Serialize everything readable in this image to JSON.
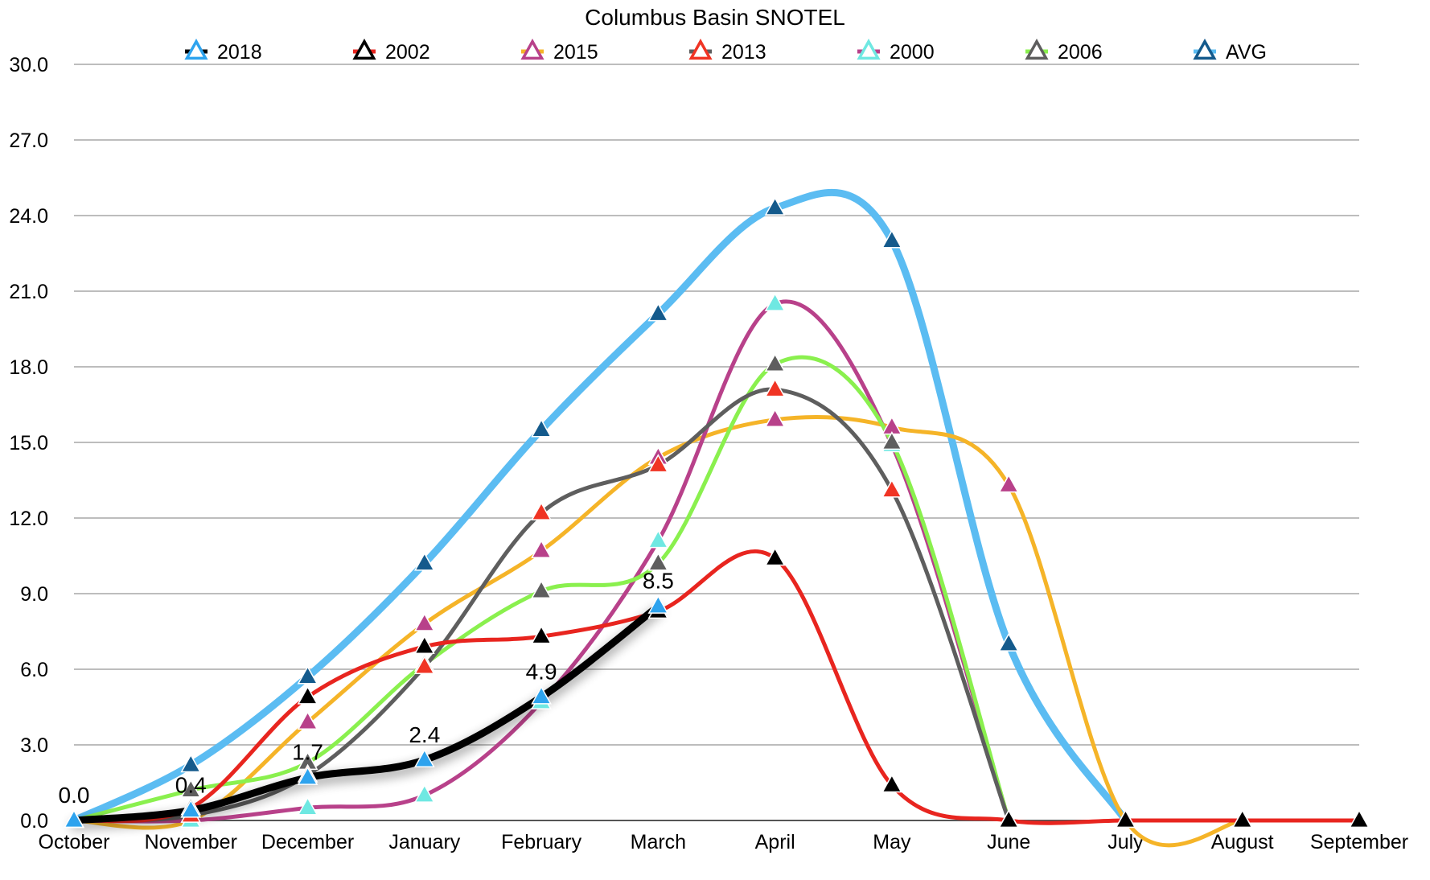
{
  "chart_data": {
    "type": "line",
    "title": "Columbus Basin SNOTEL",
    "xlabel": "",
    "ylabel": "",
    "categories": [
      "October",
      "November",
      "December",
      "January",
      "February",
      "March",
      "April",
      "May",
      "June",
      "July",
      "August",
      "September"
    ],
    "ylim": [
      0,
      30
    ],
    "yticks": [
      "0.0",
      "3.0",
      "6.0",
      "9.0",
      "12.0",
      "15.0",
      "18.0",
      "21.0",
      "24.0",
      "27.0",
      "30.0"
    ],
    "grid": true,
    "legend_position": "top",
    "series": [
      {
        "name": "AVG",
        "line_color": "#5BBCF2",
        "marker_color": "#145A8C",
        "line_width": "thick",
        "values": [
          0.0,
          2.2,
          5.7,
          10.2,
          15.5,
          20.1,
          24.3,
          23.0,
          7.0,
          0.0,
          null,
          null
        ]
      },
      {
        "name": "2015",
        "line_color": "#F5B428",
        "marker_color": "#B8418A",
        "line_width": "normal",
        "values": [
          0.0,
          0.0,
          3.9,
          7.8,
          10.7,
          14.4,
          15.9,
          15.6,
          13.3,
          0.0,
          0.0,
          null
        ]
      },
      {
        "name": "2000",
        "line_color": "#B8418A",
        "marker_color": "#6FE8E2",
        "line_width": "normal",
        "values": [
          0.0,
          0.0,
          0.5,
          1.0,
          4.7,
          11.1,
          20.5,
          14.9,
          0.0,
          null,
          null,
          null
        ]
      },
      {
        "name": "2006",
        "line_color": "#8AF04E",
        "marker_color": "#5E5E5E",
        "line_width": "normal",
        "values": [
          0.0,
          1.2,
          2.3,
          6.2,
          9.1,
          10.2,
          18.1,
          15.0,
          0.0,
          null,
          null,
          null
        ]
      },
      {
        "name": "2013",
        "line_color": "#5E5E5E",
        "marker_color": "#F03424",
        "line_width": "normal",
        "values": [
          0.0,
          0.2,
          1.8,
          6.1,
          12.2,
          14.1,
          17.1,
          13.1,
          0.0,
          null,
          null,
          null
        ]
      },
      {
        "name": "2002",
        "line_color": "#E8251F",
        "marker_color": "#000000",
        "line_width": "normal",
        "values": [
          0.0,
          0.5,
          4.9,
          6.9,
          7.3,
          8.3,
          10.4,
          1.4,
          0.0,
          0.0,
          0.0,
          0.0
        ]
      },
      {
        "name": "2018",
        "line_color": "#000000",
        "marker_color": "#2EA3EE",
        "line_width": "thick",
        "values": [
          0.0,
          0.4,
          1.7,
          2.4,
          4.9,
          8.5,
          null,
          null,
          null,
          null,
          null,
          null
        ],
        "data_labels": [
          "0.0",
          "0.4",
          "1.7",
          "2.4",
          "4.9",
          "8.5"
        ]
      }
    ],
    "legend": [
      {
        "label": "2018",
        "line_color": "#000000",
        "marker_color": "#2EA3EE"
      },
      {
        "label": "2002",
        "line_color": "#E8251F",
        "marker_color": "#000000"
      },
      {
        "label": "2015",
        "line_color": "#F5B428",
        "marker_color": "#B8418A"
      },
      {
        "label": "2013",
        "line_color": "#5E5E5E",
        "marker_color": "#F03424"
      },
      {
        "label": "2000",
        "line_color": "#B8418A",
        "marker_color": "#6FE8E2"
      },
      {
        "label": "2006",
        "line_color": "#8AF04E",
        "marker_color": "#5E5E5E"
      },
      {
        "label": "AVG",
        "line_color": "#5BBCF2",
        "marker_color": "#145A8C"
      }
    ]
  }
}
